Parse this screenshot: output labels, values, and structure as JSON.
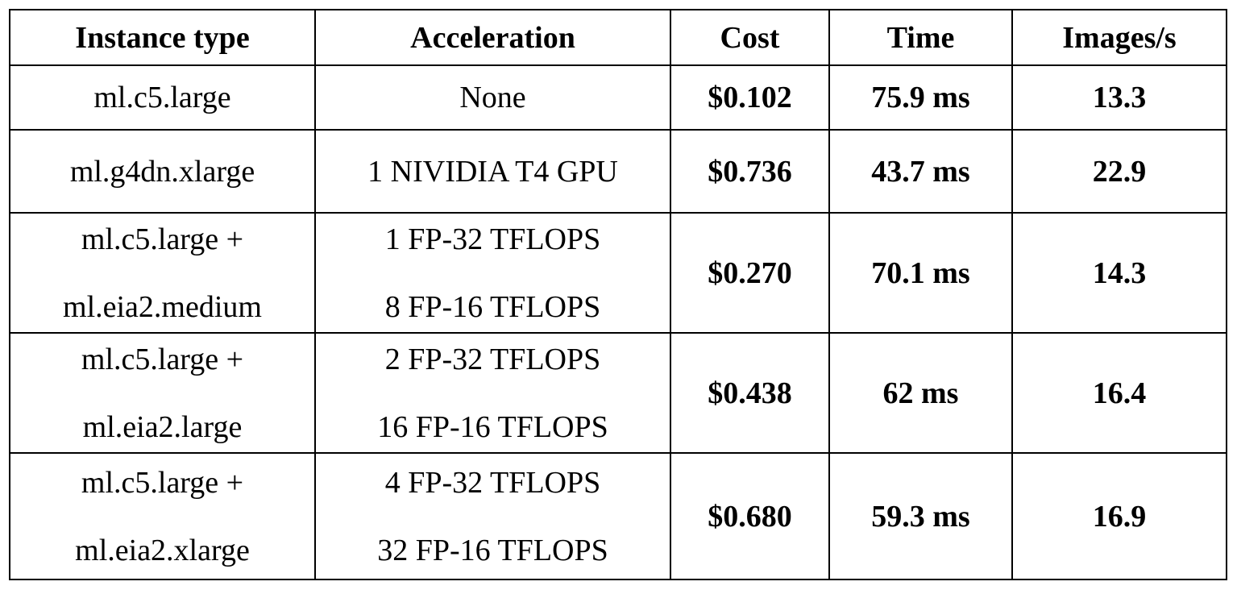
{
  "table": {
    "headers": [
      "Instance type",
      "Acceleration",
      "Cost",
      "Time",
      "Images/s"
    ],
    "rows": [
      {
        "instance": [
          "ml.c5.large"
        ],
        "acceleration": [
          "None"
        ],
        "cost": "$0.102",
        "time": "75.9 ms",
        "images_per_s": "13.3"
      },
      {
        "instance": [
          "ml.g4dn.xlarge"
        ],
        "acceleration": [
          "1 NIVIDIA T4 GPU"
        ],
        "cost": "$0.736",
        "time": "43.7 ms",
        "images_per_s": "22.9"
      },
      {
        "instance": [
          "ml.c5.large +",
          "ml.eia2.medium"
        ],
        "acceleration": [
          "1 FP-32 TFLOPS",
          "8 FP-16 TFLOPS"
        ],
        "cost": "$0.270",
        "time": "70.1 ms",
        "images_per_s": "14.3"
      },
      {
        "instance": [
          "ml.c5.large +",
          "ml.eia2.large"
        ],
        "acceleration": [
          "2 FP-32 TFLOPS",
          "16 FP-16 TFLOPS"
        ],
        "cost": "$0.438",
        "time": "62 ms",
        "images_per_s": "16.4"
      },
      {
        "instance": [
          "ml.c5.large +",
          "ml.eia2.xlarge"
        ],
        "acceleration": [
          "4 FP-32 TFLOPS",
          "32 FP-16 TFLOPS"
        ],
        "cost": "$0.680",
        "time": "59.3 ms",
        "images_per_s": "16.9"
      }
    ]
  }
}
